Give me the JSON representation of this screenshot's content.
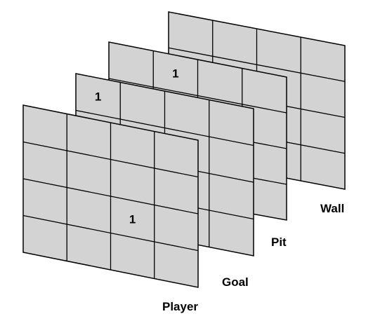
{
  "layers": [
    {
      "id": "wall",
      "label": "Wall",
      "marked_cells": []
    },
    {
      "id": "pit",
      "label": "Pit",
      "marked_cells": [
        {
          "row": 0,
          "col": 1,
          "value": "1"
        }
      ]
    },
    {
      "id": "goal",
      "label": "Goal",
      "marked_cells": [
        {
          "row": 0,
          "col": 0,
          "value": "1"
        }
      ]
    },
    {
      "id": "player",
      "label": "Player",
      "marked_cells": [
        {
          "row": 2,
          "col": 2,
          "value": "1"
        }
      ]
    }
  ],
  "grid": {
    "rows": 4,
    "cols": 4
  },
  "colors": {
    "cell_fill": "#d3d3d3",
    "line": "#000000",
    "text": "#000000",
    "background": "#ffffff"
  }
}
